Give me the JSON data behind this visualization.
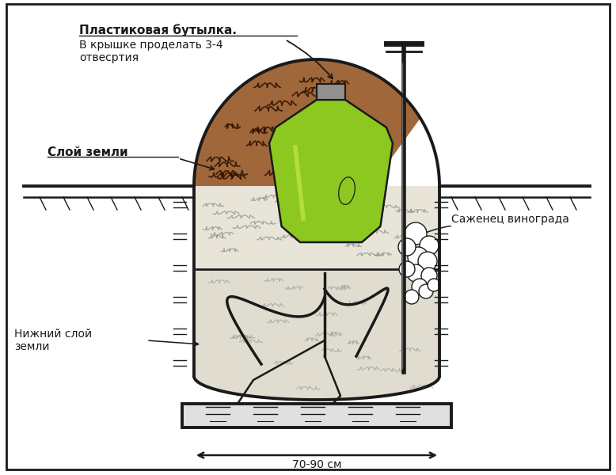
{
  "bg_color": "#ffffff",
  "border_color": "#1a1a1a",
  "soil_brown_color": "#A0673A",
  "bottle_green_color": "#8CC820",
  "bottle_cap_color": "#909090",
  "sand_color": "#e8e4d8",
  "lower_soil_color": "#e0dcd0",
  "annotations": {
    "bottle_label": "Пластиковая бутылка.",
    "bottle_sub": "В крышке проделать 3-4\nотвесртия",
    "soil_layer": "Слой земли",
    "lower_soil": "Нижний слой\nземли",
    "sapling": "Саженец винограда",
    "width_label": "70-90 см"
  }
}
